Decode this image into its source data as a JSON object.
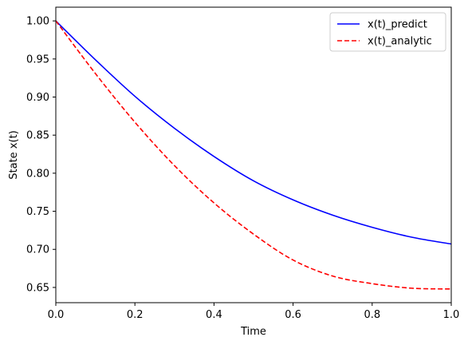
{
  "chart_data": {
    "type": "line",
    "title": "",
    "xlabel": "Time",
    "ylabel": "State x(t)",
    "xlim": [
      0.0,
      1.0
    ],
    "ylim": [
      0.63,
      1.018
    ],
    "xticks": [
      "0.0",
      "0.2",
      "0.4",
      "0.6",
      "0.8",
      "1.0"
    ],
    "yticks": [
      "0.65",
      "0.70",
      "0.75",
      "0.80",
      "0.85",
      "0.90",
      "0.95",
      "1.00"
    ],
    "grid": false,
    "legend_position": "top-right",
    "series": [
      {
        "name": "x(t)_predict",
        "color": "#0000ff",
        "style": "solid",
        "x": [
          0.0,
          0.1,
          0.2,
          0.3,
          0.4,
          0.5,
          0.6,
          0.7,
          0.8,
          0.9,
          1.0
        ],
        "y": [
          1.0,
          0.949,
          0.901,
          0.859,
          0.822,
          0.79,
          0.765,
          0.745,
          0.729,
          0.716,
          0.707
        ]
      },
      {
        "name": "x(t)_analytic",
        "color": "#ff0000",
        "style": "dashed",
        "x": [
          0.0,
          0.1,
          0.2,
          0.3,
          0.4,
          0.5,
          0.6,
          0.7,
          0.8,
          0.9,
          1.0
        ],
        "y": [
          1.0,
          0.931,
          0.867,
          0.81,
          0.761,
          0.72,
          0.686,
          0.665,
          0.655,
          0.649,
          0.648
        ]
      }
    ]
  }
}
